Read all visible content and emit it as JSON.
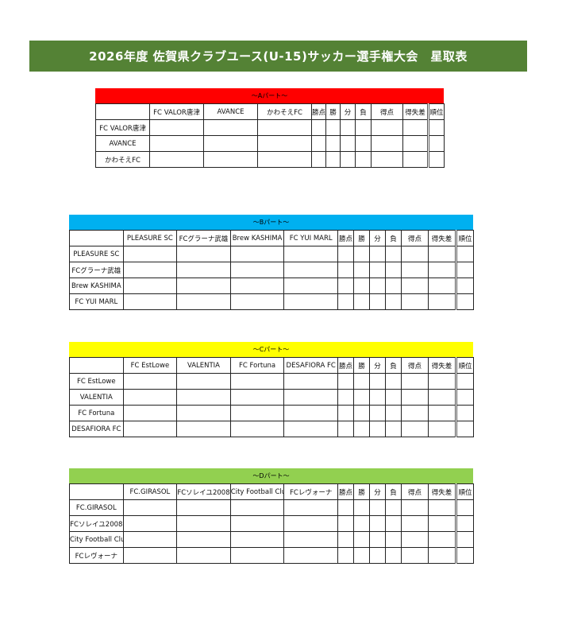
{
  "title": "2026年度 佐賀県クラブユース(U-15)サッカー選手権大会　星取表",
  "stat_headers": [
    "勝点",
    "勝",
    "分",
    "負",
    "得点",
    "得失差",
    "順位"
  ],
  "parts": [
    {
      "title": "～Aパート～",
      "color": "#ff0000",
      "teams": [
        "FC VALOR唐津",
        "AVANCE",
        "かわそえFC"
      ]
    },
    {
      "title": "～Bパート～",
      "color": "#00b0f0",
      "teams": [
        "PLEASURE SC",
        "FCグラーナ武雄",
        "Brew KASHIMA",
        "FC YUI MARL"
      ]
    },
    {
      "title": "～Cパート～",
      "color": "#ffff00",
      "teams": [
        "FC EstLowe",
        "VALENTIA",
        "FC Fortuna",
        "DESAFIORA FC"
      ]
    },
    {
      "title": "～Dパート～",
      "color": "#92d050",
      "teams": [
        "FC.GIRASOL",
        "FCソレイユ2008",
        "City Football Clu",
        "FCレヴォーナ"
      ]
    }
  ]
}
